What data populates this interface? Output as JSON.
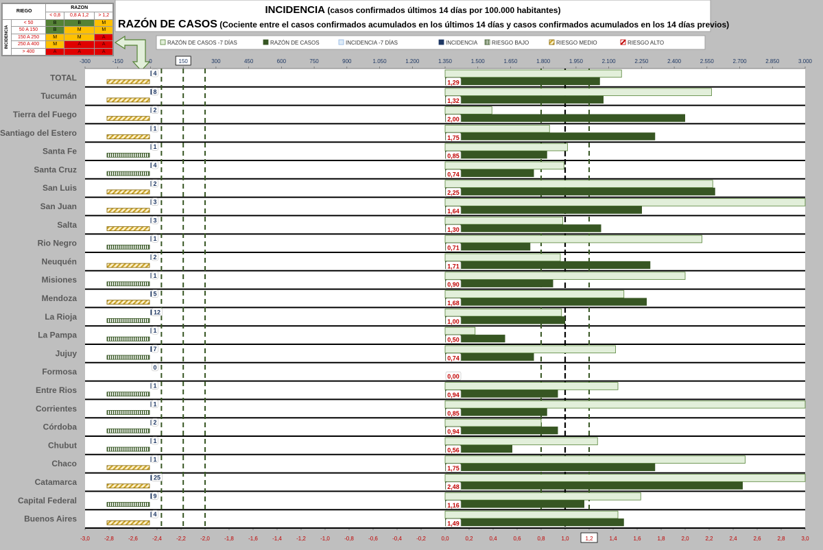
{
  "title": {
    "line1_main": "INCIDENCIA",
    "line1_rest": " (casos confirmados últimos 14 días por 100.000 habitantes)",
    "line2_main": "RAZÓN DE CASOS",
    "line2_rest": " (Cociente entre el casos confirmados acumulados en los últimos 14 días y casos confirmados acumulados en los 14 días previos)"
  },
  "risk_table": {
    "corner": "RIEGO",
    "razon_header": "RAZON",
    "side_label": "INCIDENCIA",
    "ratio_cols": [
      "< 0,8",
      "0,8 A 1,2",
      "> 1,2"
    ],
    "rows": [
      {
        "label": "< 50",
        "cells": [
          "B",
          "B",
          "M"
        ]
      },
      {
        "label": "50 A 150",
        "cells": [
          "B",
          "M",
          "M"
        ]
      },
      {
        "label": "150 A 250",
        "cells": [
          "M",
          "M",
          "A"
        ]
      },
      {
        "label": "250 A 400",
        "cells": [
          "M",
          "A",
          "A"
        ]
      },
      {
        "label": "> 400",
        "cells": [
          "A",
          "A",
          "A"
        ]
      }
    ]
  },
  "legend": [
    {
      "label": "RAZÓN DE CASOS -7 DÍAS",
      "style": "light-green"
    },
    {
      "label": "RAZÓN DE CASOS",
      "style": "dark-green"
    },
    {
      "label": "INCIDENCIA -7 DÍAS",
      "style": "light-blue"
    },
    {
      "label": "INCIDENCIA",
      "style": "navy"
    },
    {
      "label": "RIESGO BAJO",
      "style": "pattern-green"
    },
    {
      "label": "RIESGO MEDIO",
      "style": "pattern-yellow"
    },
    {
      "label": "RIESGO ALTO",
      "style": "pattern-red"
    }
  ],
  "colors": {
    "ratio_7d_fill": "#e2efda",
    "ratio_7d_border": "#548235",
    "ratio_fill": "#375623",
    "incidence": "#1f3864",
    "risk_low": "#548235",
    "risk_medium": "#c9a227",
    "value_label": "#c00000",
    "threshold_dark": "#375623",
    "threshold_black": "#000000"
  },
  "chart_data": {
    "type": "bar",
    "orientation": "horizontal",
    "top_axis": {
      "min": -300,
      "max": 3000,
      "ticks": [
        "-300",
        "-150",
        "0",
        "150",
        "300",
        "450",
        "600",
        "750",
        "900",
        "1.050",
        "1.200",
        "1.350",
        "1.500",
        "1.650",
        "1.800",
        "1.950",
        "2.100",
        "2.250",
        "2.400",
        "2.550",
        "2.700",
        "2.850",
        "3.000"
      ],
      "boxed_tick": "150"
    },
    "bottom_axis": {
      "min": -3.0,
      "max": 3.0,
      "ticks": [
        "-3,0",
        "-2,8",
        "-2,6",
        "-2,4",
        "-2,2",
        "-2,0",
        "-1,8",
        "-1,6",
        "-1,4",
        "-1,2",
        "-1,0",
        "-0,8",
        "-0,6",
        "-0,4",
        "-0,2",
        "0,0",
        "0,2",
        "0,4",
        "0,6",
        "0,8",
        "1,0",
        "1,2",
        "1,4",
        "1,6",
        "1,8",
        "2,0",
        "2,2",
        "2,4",
        "2,6",
        "2,8",
        "3,0"
      ],
      "boxed_tick": "1,2"
    },
    "thresholds": {
      "incidence": [
        50,
        150,
        250
      ],
      "ratio_dark": [
        0.8,
        1.2
      ],
      "ratio_black": [
        1.0
      ]
    },
    "series": [
      {
        "name": "RAZÓN DE CASOS -7 DÍAS"
      },
      {
        "name": "RAZÓN DE CASOS"
      },
      {
        "name": "INCIDENCIA -7 DÍAS"
      },
      {
        "name": "INCIDENCIA"
      }
    ],
    "rows": [
      {
        "name": "TOTAL",
        "incidence": 4,
        "incidence_label": "4",
        "risk": "medium",
        "ratio": 1.29,
        "ratio_label": "1,29",
        "ratio_7d": 1.47
      },
      {
        "name": "Tucumán",
        "incidence": 8,
        "incidence_label": "8",
        "risk": "medium",
        "ratio": 1.32,
        "ratio_label": "1,32",
        "ratio_7d": 2.22
      },
      {
        "name": "Tierra del Fuego",
        "incidence": 2,
        "incidence_label": "2",
        "risk": "medium",
        "ratio": 2.0,
        "ratio_label": "2,00",
        "ratio_7d": 0.39
      },
      {
        "name": "Santiago del Estero",
        "incidence": 1,
        "incidence_label": "1",
        "risk": "medium",
        "ratio": 1.75,
        "ratio_label": "1,75",
        "ratio_7d": 0.87
      },
      {
        "name": "Santa Fe",
        "incidence": 1,
        "incidence_label": "1",
        "risk": "low",
        "ratio": 0.85,
        "ratio_label": "0,85",
        "ratio_7d": 1.02
      },
      {
        "name": "Santa Cruz",
        "incidence": 4,
        "incidence_label": "4",
        "risk": "low",
        "ratio": 0.74,
        "ratio_label": "0,74",
        "ratio_7d": 0.99
      },
      {
        "name": "San Luis",
        "incidence": 2,
        "incidence_label": "2",
        "risk": "medium",
        "ratio": 2.25,
        "ratio_label": "2,25",
        "ratio_7d": 2.23
      },
      {
        "name": "San Juan",
        "incidence": 3,
        "incidence_label": "3",
        "risk": "medium",
        "ratio": 1.64,
        "ratio_label": "1,64",
        "ratio_7d": 3.0
      },
      {
        "name": "Salta",
        "incidence": 3,
        "incidence_label": "3",
        "risk": "medium",
        "ratio": 1.3,
        "ratio_label": "1,30",
        "ratio_7d": 0.98
      },
      {
        "name": "Rio Negro",
        "incidence": 1,
        "incidence_label": "1",
        "risk": "low",
        "ratio": 0.71,
        "ratio_label": "0,71",
        "ratio_7d": 2.14
      },
      {
        "name": "Neuquén",
        "incidence": 2,
        "incidence_label": "2",
        "risk": "medium",
        "ratio": 1.71,
        "ratio_label": "1,71",
        "ratio_7d": 0.96
      },
      {
        "name": "Misiones",
        "incidence": 1,
        "incidence_label": "1",
        "risk": "low",
        "ratio": 0.9,
        "ratio_label": "0,90",
        "ratio_7d": 2.0
      },
      {
        "name": "Mendoza",
        "incidence": 5,
        "incidence_label": "5",
        "risk": "medium",
        "ratio": 1.68,
        "ratio_label": "1,68",
        "ratio_7d": 1.49
      },
      {
        "name": "La Rioja",
        "incidence": 12,
        "incidence_label": "12",
        "risk": "low",
        "ratio": 1.0,
        "ratio_label": "1,00",
        "ratio_7d": 0.97
      },
      {
        "name": "La Pampa",
        "incidence": 1,
        "incidence_label": "1",
        "risk": "low",
        "ratio": 0.5,
        "ratio_label": "0,50",
        "ratio_7d": 0.25
      },
      {
        "name": "Jujuy",
        "incidence": 7,
        "incidence_label": "7",
        "risk": "low",
        "ratio": 0.74,
        "ratio_label": "0,74",
        "ratio_7d": 1.42
      },
      {
        "name": "Formosa",
        "incidence": 0,
        "incidence_label": "0",
        "risk": "none",
        "ratio": 0.0,
        "ratio_label": "0,00",
        "ratio_7d": 0
      },
      {
        "name": "Entre Rios",
        "incidence": 1,
        "incidence_label": "1",
        "risk": "low",
        "ratio": 0.94,
        "ratio_label": "0,94",
        "ratio_7d": 1.44
      },
      {
        "name": "Corrientes",
        "incidence": 1,
        "incidence_label": "1",
        "risk": "low",
        "ratio": 0.85,
        "ratio_label": "0,85",
        "ratio_7d": 3.0
      },
      {
        "name": "Córdoba",
        "incidence": 2,
        "incidence_label": "2",
        "risk": "low",
        "ratio": 0.94,
        "ratio_label": "0,94",
        "ratio_7d": 0.8
      },
      {
        "name": "Chubut",
        "incidence": 1,
        "incidence_label": "1",
        "risk": "low",
        "ratio": 0.56,
        "ratio_label": "0,56",
        "ratio_7d": 1.27
      },
      {
        "name": "Chaco",
        "incidence": 1,
        "incidence_label": "1",
        "risk": "medium",
        "ratio": 1.75,
        "ratio_label": "1,75",
        "ratio_7d": 2.5
      },
      {
        "name": "Catamarca",
        "incidence": 25,
        "incidence_label": "25",
        "risk": "medium",
        "ratio": 2.48,
        "ratio_label": "2,48",
        "ratio_7d": 3.0
      },
      {
        "name": "Capital Federal",
        "incidence": 9,
        "incidence_label": "9",
        "risk": "low",
        "ratio": 1.16,
        "ratio_label": "1,16",
        "ratio_7d": 1.63
      },
      {
        "name": "Buenos Aires",
        "incidence": 4,
        "incidence_label": "4",
        "risk": "medium",
        "ratio": 1.49,
        "ratio_label": "1,49",
        "ratio_7d": 1.44
      }
    ]
  }
}
